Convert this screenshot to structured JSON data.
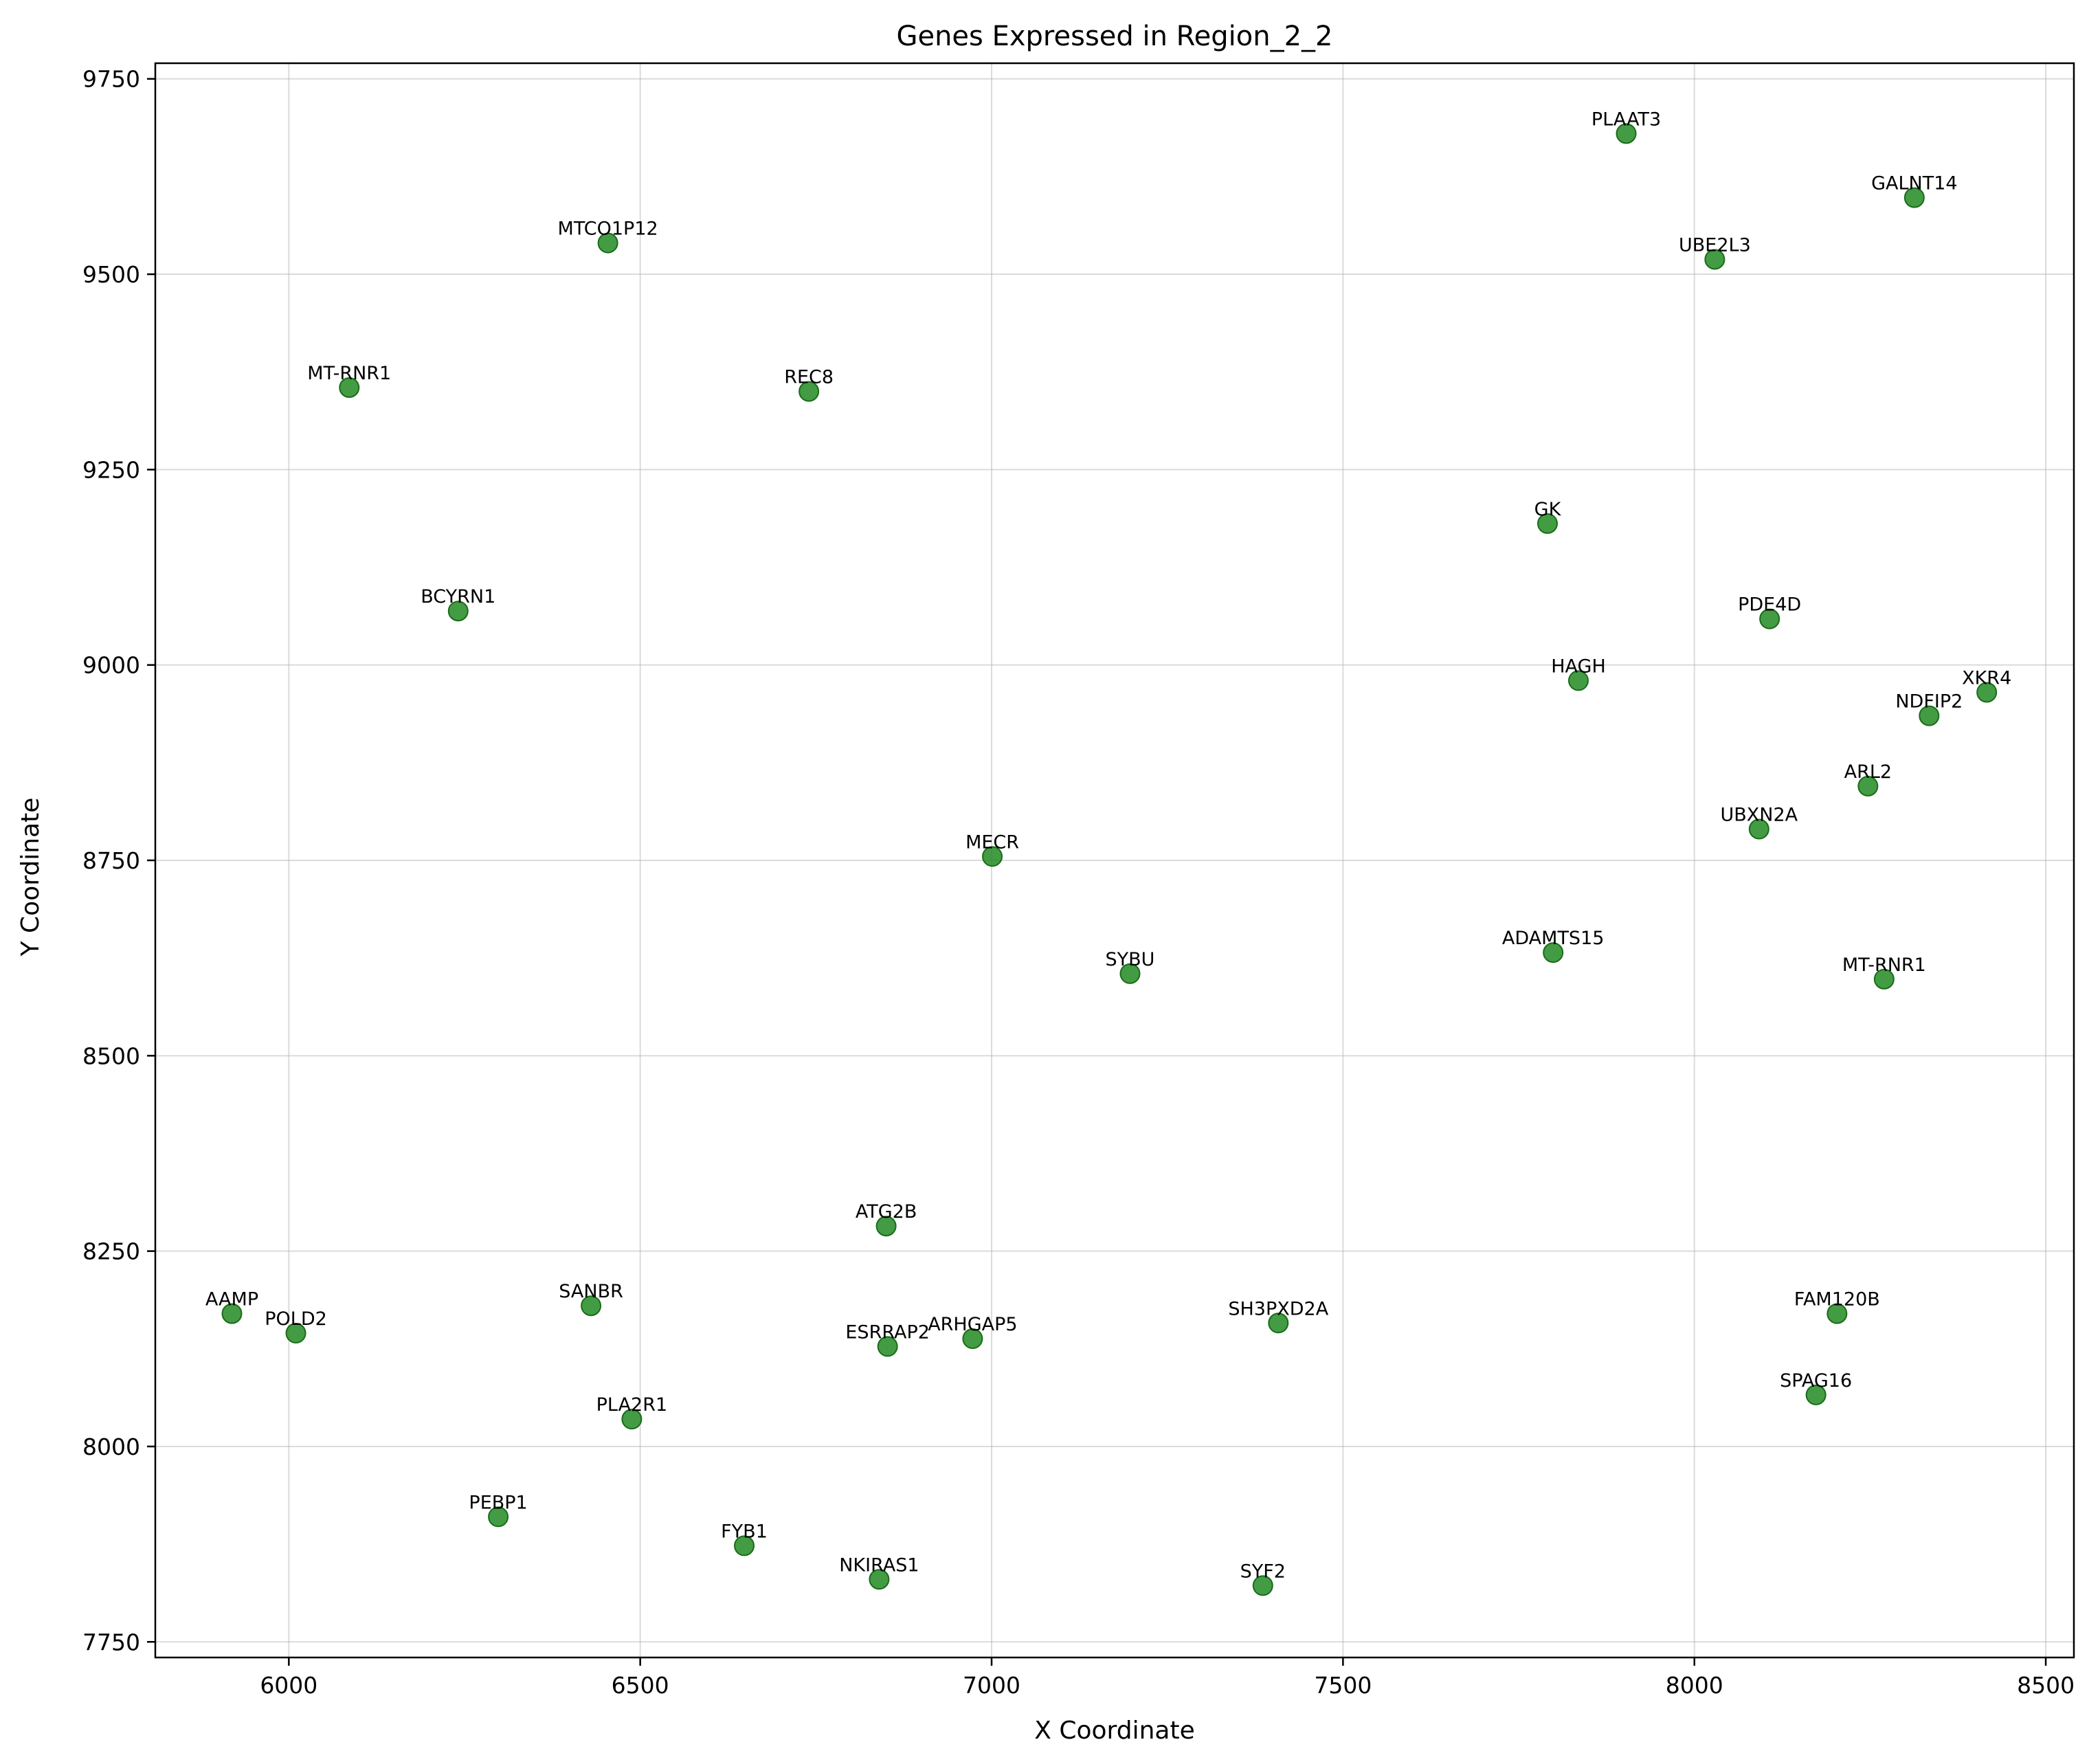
{
  "chart_data": {
    "type": "scatter",
    "title": "Genes Expressed in Region_2_2",
    "xlabel": "X Coordinate",
    "ylabel": "Y Coordinate",
    "xlim": [
      5810,
      8540
    ],
    "ylim": [
      7730,
      9770
    ],
    "xticks": [
      6000,
      6500,
      7000,
      7500,
      8000,
      8500
    ],
    "yticks": [
      7750,
      8000,
      8250,
      8500,
      8750,
      9000,
      9250,
      9500,
      9750
    ],
    "grid": true,
    "marker_color": "#228B22",
    "points": [
      {
        "label": "PLAAT3",
        "x": 7903,
        "y": 9680
      },
      {
        "label": "GALNT14",
        "x": 8313,
        "y": 9598
      },
      {
        "label": "UBE2L3",
        "x": 8029,
        "y": 9519
      },
      {
        "label": "MTCO1P12",
        "x": 6454,
        "y": 9540
      },
      {
        "label": "MT-RNR1",
        "x": 6086,
        "y": 9355
      },
      {
        "label": "REC8",
        "x": 6740,
        "y": 9350
      },
      {
        "label": "GK",
        "x": 7791,
        "y": 9181
      },
      {
        "label": "BCYRN1",
        "x": 6241,
        "y": 9069
      },
      {
        "label": "PDE4D",
        "x": 8107,
        "y": 9059
      },
      {
        "label": "HAGH",
        "x": 7835,
        "y": 8980
      },
      {
        "label": "XKR4",
        "x": 8416,
        "y": 8965
      },
      {
        "label": "NDFIP2",
        "x": 8334,
        "y": 8935
      },
      {
        "label": "ARL2",
        "x": 8247,
        "y": 8845
      },
      {
        "label": "UBXN2A",
        "x": 8092,
        "y": 8790
      },
      {
        "label": "MECR",
        "x": 7001,
        "y": 8755
      },
      {
        "label": "ADAMTS15",
        "x": 7799,
        "y": 8632
      },
      {
        "label": "SYBU",
        "x": 7197,
        "y": 8605
      },
      {
        "label": "MT-RNR1",
        "x": 8270,
        "y": 8598
      },
      {
        "label": "ATG2B",
        "x": 6850,
        "y": 8282
      },
      {
        "label": "AAMP",
        "x": 5919,
        "y": 8170
      },
      {
        "label": "SANBR",
        "x": 6430,
        "y": 8180
      },
      {
        "label": "POLD2",
        "x": 6010,
        "y": 8145
      },
      {
        "label": "SH3PXD2A",
        "x": 7408,
        "y": 8158
      },
      {
        "label": "FAM120B",
        "x": 8203,
        "y": 8170
      },
      {
        "label": "ARHGAP5",
        "x": 6973,
        "y": 8138
      },
      {
        "label": "ESRRAP2",
        "x": 6852,
        "y": 8128
      },
      {
        "label": "SPAG16",
        "x": 8173,
        "y": 8066
      },
      {
        "label": "PLA2R1",
        "x": 6488,
        "y": 8035
      },
      {
        "label": "PEBP1",
        "x": 6298,
        "y": 7910
      },
      {
        "label": "FYB1",
        "x": 6648,
        "y": 7873
      },
      {
        "label": "NKIRAS1",
        "x": 6840,
        "y": 7830
      },
      {
        "label": "SYF2",
        "x": 7386,
        "y": 7822
      }
    ]
  }
}
